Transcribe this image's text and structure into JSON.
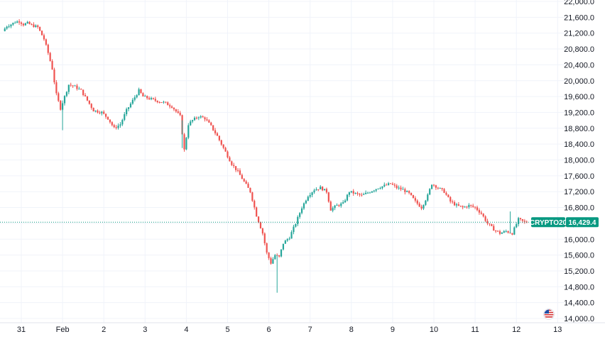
{
  "chart_data": {
    "type": "candlestick",
    "symbol_label": "CRYPTO20",
    "last_price": 16429.4,
    "last_price_label": "16,429.4",
    "y_range": [
      14000,
      22000
    ],
    "y_ticks": [
      "22,000.0",
      "21,600.0",
      "21,200.0",
      "20,800.0",
      "20,400.0",
      "20,000.0",
      "19,600.0",
      "19,200.0",
      "18,800.0",
      "18,400.0",
      "18,000.0",
      "17,600.0",
      "17,200.0",
      "16,800.0",
      "16,400.0",
      "16,000.0",
      "15,600.0",
      "15,200.0",
      "14,800.0",
      "14,400.0",
      "14,000.0"
    ],
    "x_ticks": [
      "31",
      "Feb",
      "2",
      "3",
      "4",
      "5",
      "6",
      "7",
      "8",
      "9",
      "10",
      "11",
      "12",
      "13"
    ],
    "x_tick_days": [
      0,
      1,
      2,
      3,
      4,
      5,
      6,
      7,
      8,
      9,
      10,
      11,
      12,
      13
    ],
    "x_range_days": [
      -0.42,
      13.8
    ],
    "grid": true,
    "price_path_days": [
      -0.4,
      -0.3,
      -0.2,
      -0.1,
      0,
      0.1,
      0.2,
      0.3,
      0.45,
      0.6,
      0.7,
      0.8,
      0.9,
      1.0,
      1.1,
      1.2,
      1.35,
      1.5,
      1.65,
      1.8,
      2.0,
      2.15,
      2.3,
      2.45,
      2.6,
      2.75,
      2.9,
      3.0,
      3.15,
      3.3,
      3.5,
      3.7,
      3.9,
      4.0,
      4.1,
      4.2,
      4.35,
      4.5,
      4.65,
      4.8,
      5.0,
      5.15,
      5.3,
      5.45,
      5.6,
      5.75,
      5.9,
      6.0,
      6.1,
      6.2,
      6.3,
      6.4,
      6.55,
      6.7,
      6.85,
      7.0,
      7.15,
      7.3,
      7.45,
      7.55,
      7.7,
      7.85,
      8.0,
      8.15,
      8.3,
      8.5,
      8.7,
      8.85,
      9.0,
      9.15,
      9.3,
      9.45,
      9.6,
      9.75,
      9.9,
      10.0,
      10.15,
      10.3,
      10.45,
      10.6,
      10.75,
      10.9,
      11.05,
      11.2,
      11.35,
      11.5,
      11.65,
      11.8,
      11.95,
      12.1,
      12.25
    ],
    "price_path_values": [
      21250,
      21380,
      21420,
      21480,
      21500,
      21420,
      21450,
      21400,
      21350,
      21050,
      20700,
      20300,
      19650,
      19300,
      19600,
      19900,
      19850,
      19750,
      19500,
      19250,
      19200,
      19050,
      18800,
      18900,
      19250,
      19500,
      19750,
      19600,
      19550,
      19500,
      19450,
      19350,
      19100,
      18250,
      18900,
      19000,
      19100,
      19050,
      18850,
      18600,
      18200,
      17900,
      17700,
      17450,
      17200,
      16600,
      16150,
      15650,
      15400,
      15600,
      15550,
      15900,
      16050,
      16400,
      16800,
      17100,
      17250,
      17300,
      17200,
      16750,
      16850,
      16900,
      17200,
      17150,
      17100,
      17200,
      17300,
      17350,
      17400,
      17300,
      17250,
      17150,
      16950,
      16800,
      17100,
      17400,
      17300,
      17200,
      16950,
      16850,
      16800,
      16850,
      16800,
      16650,
      16400,
      16250,
      16150,
      16200,
      16150,
      16500,
      16430
    ]
  },
  "colors": {
    "up": "#26a69a",
    "down": "#ef5350",
    "grid": "#f0f3fa",
    "badge": "#089981",
    "last_line": "#089981",
    "text": "#131722"
  }
}
